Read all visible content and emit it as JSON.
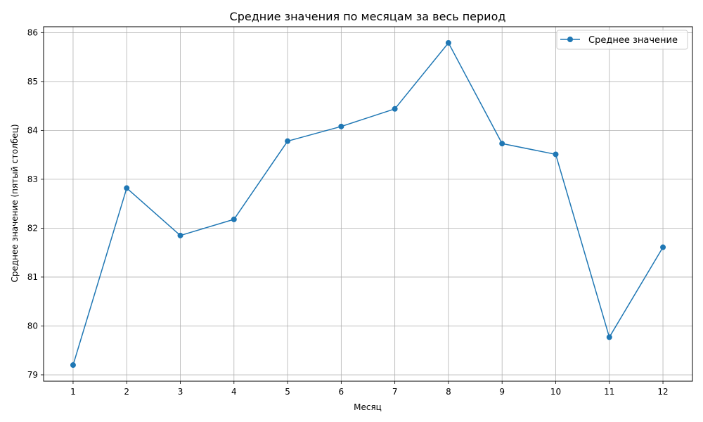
{
  "chart_data": {
    "type": "line",
    "title": "Средние значения по месяцам за весь период",
    "xlabel": "Месяц",
    "ylabel": "Среднее значение (пятый столбец)",
    "x": [
      1,
      2,
      3,
      4,
      5,
      6,
      7,
      8,
      9,
      10,
      11,
      12
    ],
    "series": [
      {
        "name": "Среднее значение",
        "values": [
          79.2,
          82.82,
          81.85,
          82.18,
          83.78,
          84.08,
          84.44,
          85.79,
          83.73,
          83.51,
          79.77,
          81.61
        ],
        "color": "#1f77b4",
        "marker": "circle"
      }
    ],
    "xticks": [
      1,
      2,
      3,
      4,
      5,
      6,
      7,
      8,
      9,
      10,
      11,
      12
    ],
    "yticks": [
      79,
      80,
      81,
      82,
      83,
      84,
      85,
      86
    ],
    "xlim": [
      0.45,
      12.55
    ],
    "ylim": [
      78.87,
      86.12
    ],
    "grid": true,
    "legend_position": "top-right"
  }
}
